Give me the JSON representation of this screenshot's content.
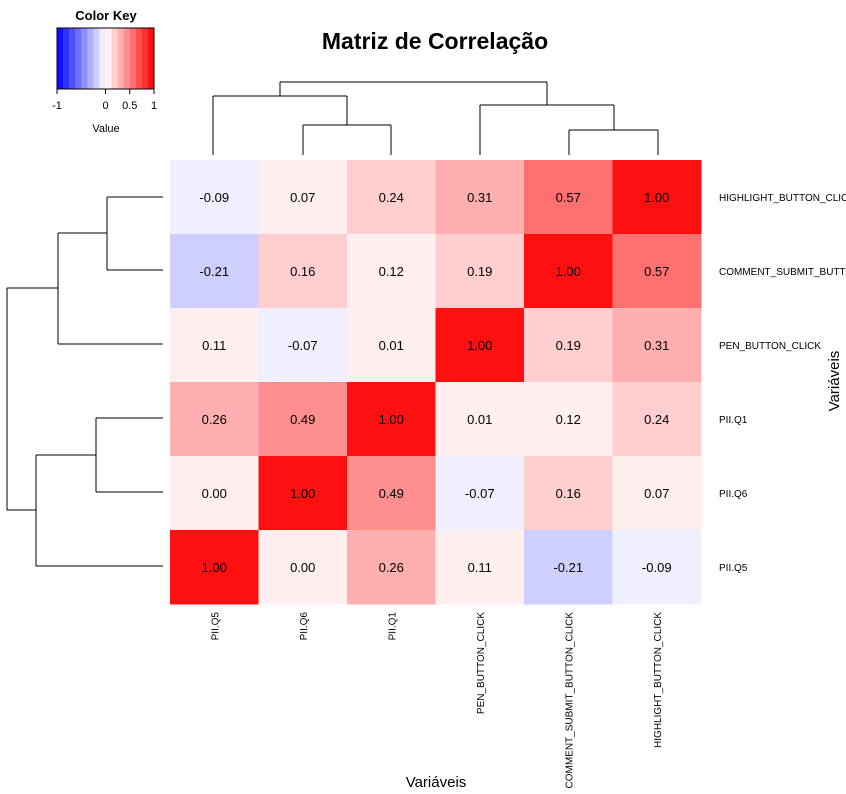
{
  "chart_data": {
    "type": "heatmap",
    "title": "Matriz de Correlação",
    "xlabel": "Variáveis",
    "ylabel": "Variáveis",
    "columns": [
      "PII.Q5",
      "PII.Q6",
      "PII.Q1",
      "PEN_BUTTON_CLICK",
      "COMMENT_SUBMIT_BUTTON_CLICK",
      "HIGHLIGHT_BUTTON_CLICK"
    ],
    "rows": [
      "HIGHLIGHT_BUTTON_CLICK",
      "COMMENT_SUBMIT_BUTTON_CLICK",
      "PEN_BUTTON_CLICK",
      "PII.Q1",
      "PII.Q6",
      "PII.Q5"
    ],
    "values": [
      [
        -0.09,
        0.07,
        0.24,
        0.31,
        0.57,
        1.0
      ],
      [
        -0.21,
        0.16,
        0.12,
        0.19,
        1.0,
        0.57
      ],
      [
        0.11,
        -0.07,
        0.01,
        1.0,
        0.19,
        0.31
      ],
      [
        0.26,
        0.49,
        1.0,
        0.01,
        0.12,
        0.24
      ],
      [
        0.0,
        1.0,
        0.49,
        -0.07,
        0.16,
        0.07
      ],
      [
        1.0,
        0.0,
        0.26,
        0.11,
        -0.21,
        -0.09
      ]
    ],
    "value_range": [
      -1,
      1
    ],
    "color_low": "#0000ff",
    "color_mid": "#ffffff",
    "color_high": "#ff0000",
    "color_key": {
      "title": "Color Key",
      "label": "Value",
      "ticks": [
        "-1",
        "0",
        "0.5",
        "1"
      ]
    },
    "row_dendrogram": "left",
    "column_dendrogram": "top"
  }
}
